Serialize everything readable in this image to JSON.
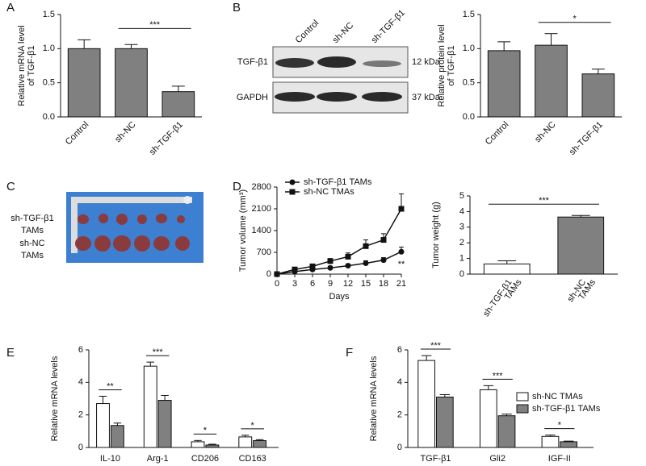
{
  "panels": [
    "A",
    "B",
    "C",
    "D",
    "E",
    "F"
  ],
  "blot": {
    "lanes": [
      "Control",
      "sh-NC",
      "sh-TGF-β1"
    ],
    "bands": [
      {
        "name": "TGF-β1",
        "size": "12 kDa"
      },
      {
        "name": "GAPDH",
        "size": "37 kDa"
      }
    ]
  },
  "photo": {
    "labels": [
      [
        "sh-TGF-β1",
        "TAMs"
      ],
      [
        "sh-NC",
        "TAMs"
      ]
    ]
  },
  "chart_data": [
    {
      "type": "bar",
      "ylabel": [
        "Relative mRNA level",
        "of TGF-β1"
      ],
      "categories": [
        "Control",
        "sh-NC",
        "sh-TGF-β1"
      ],
      "values": [
        1.0,
        1.0,
        0.37
      ],
      "errors": [
        0.13,
        0.06,
        0.08
      ],
      "color": "#808080",
      "ylim": [
        0,
        1.5
      ],
      "yticks": [
        {
          "value": 0,
          "label": "0.0"
        },
        {
          "value": 0.5,
          "label": "0.5"
        },
        {
          "value": 1,
          "label": "1.0"
        },
        {
          "value": 1.5,
          "label": "1.5"
        }
      ],
      "significance": {
        "label": "***",
        "between": [
          "sh-NC",
          "sh-TGF-β1"
        ]
      }
    },
    {
      "type": "bar",
      "ylabel": [
        "Relative protein level",
        "of TGF-β1"
      ],
      "categories": [
        "Control",
        "sh-NC",
        "sh-TGF-β1"
      ],
      "values": [
        0.97,
        1.05,
        0.63
      ],
      "errors": [
        0.13,
        0.17,
        0.07
      ],
      "color": "#808080",
      "ylim": [
        0,
        1.5
      ],
      "yticks": [
        {
          "value": 0,
          "label": "0.0"
        },
        {
          "value": 0.5,
          "label": "0.5"
        },
        {
          "value": 1,
          "label": "1.0"
        },
        {
          "value": 1.5,
          "label": "1.5"
        }
      ],
      "significance": {
        "label": "*",
        "between": [
          "sh-NC",
          "sh-TGF-β1"
        ]
      }
    },
    {
      "type": "line",
      "xlabel": "Days",
      "ylabel": [
        "Tumor volume (mm³)"
      ],
      "x": [
        0,
        3,
        6,
        9,
        12,
        15,
        18,
        21
      ],
      "xlim": [
        0,
        21
      ],
      "xticks": [
        0,
        3,
        6,
        9,
        12,
        15,
        18,
        21
      ],
      "ylim": [
        0,
        2800
      ],
      "yticks": [
        0,
        700,
        1400,
        2100,
        2800
      ],
      "legend": "upper left",
      "annotation": "**",
      "series": [
        {
          "name": "sh-TGF-β1 TAMs",
          "color": "#111111",
          "marker": "circle",
          "values": [
            0,
            80,
            150,
            200,
            270,
            350,
            450,
            720
          ],
          "errors": [
            0,
            30,
            40,
            50,
            60,
            80,
            80,
            150
          ]
        },
        {
          "name": "sh-NC TMAs",
          "color": "#111111",
          "marker": "square",
          "values": [
            0,
            150,
            250,
            420,
            560,
            900,
            1100,
            2100
          ],
          "errors": [
            0,
            40,
            60,
            80,
            120,
            200,
            200,
            480
          ]
        }
      ]
    },
    {
      "type": "bar",
      "ylabel": [
        "Tumor weight (g)"
      ],
      "categories": [
        [
          "sh-TGF-β1",
          "TAMs"
        ],
        [
          "sh-NC",
          "TAMs"
        ]
      ],
      "values": [
        0.65,
        3.65
      ],
      "errors": [
        0.2,
        0.1
      ],
      "colors": [
        "#ffffff",
        "#808080"
      ],
      "ylim": [
        0,
        5
      ],
      "yticks": [
        0,
        1,
        2,
        3,
        4,
        5
      ],
      "significance": {
        "label": "***",
        "between": [
          0,
          1
        ]
      }
    },
    {
      "type": "grouped-bar",
      "ylabel": [
        "Relative mRNA levels"
      ],
      "categories": [
        "IL-10",
        "Arg-1",
        "CD206",
        "CD163"
      ],
      "ylim": [
        0,
        6
      ],
      "yticks": [
        0,
        2,
        4,
        6
      ],
      "significance": [
        "**",
        "***",
        "*",
        "*"
      ],
      "series": [
        {
          "color": "#ffffff",
          "values": [
            2.7,
            5.0,
            0.35,
            0.65
          ],
          "errors": [
            0.45,
            0.25,
            0.08,
            0.1
          ]
        },
        {
          "color": "#808080",
          "values": [
            1.35,
            2.9,
            0.15,
            0.42
          ],
          "errors": [
            0.15,
            0.3,
            0.05,
            0.06
          ]
        }
      ]
    },
    {
      "type": "grouped-bar",
      "ylabel": [
        "Relative mRNA levels"
      ],
      "categories": [
        "TGF-β1",
        "Gli2",
        "IGF-II"
      ],
      "ylim": [
        0,
        6
      ],
      "yticks": [
        0,
        2,
        4,
        6
      ],
      "significance": [
        "***",
        "***",
        "*"
      ],
      "legend": "upper right",
      "series": [
        {
          "name": "sh-NC TMAs",
          "color": "#ffffff",
          "values": [
            5.35,
            3.55,
            0.68
          ],
          "errors": [
            0.3,
            0.25,
            0.08
          ]
        },
        {
          "name": "sh-TGF-β1 TAMs",
          "color": "#808080",
          "values": [
            3.1,
            1.95,
            0.35
          ],
          "errors": [
            0.15,
            0.1,
            0.04
          ]
        }
      ]
    }
  ]
}
